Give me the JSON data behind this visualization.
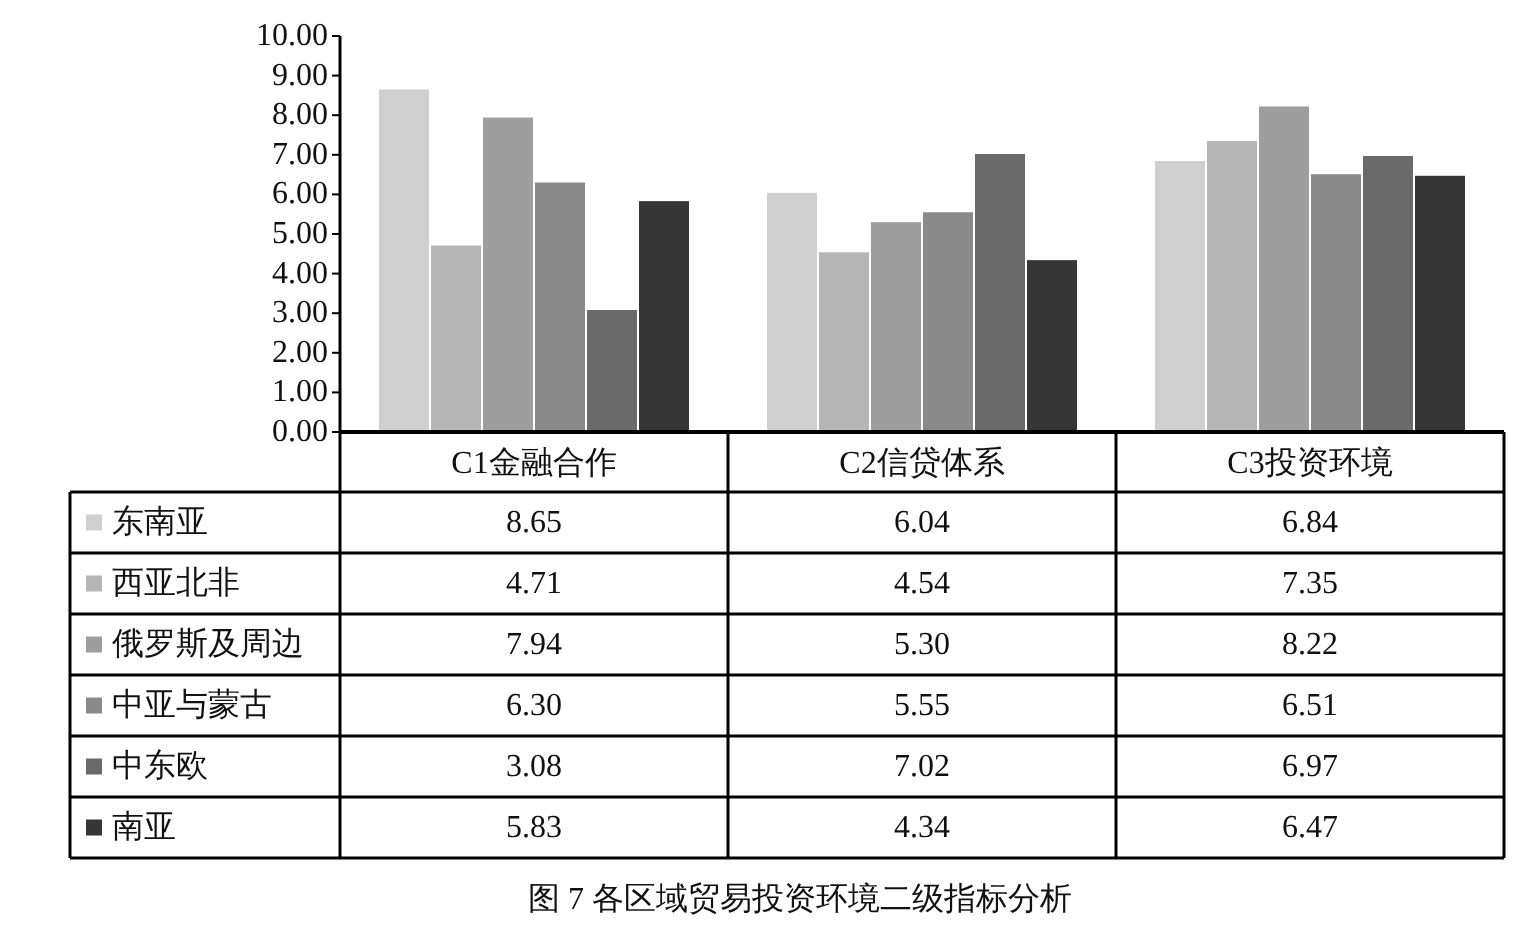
{
  "chart_data": {
    "type": "bar",
    "title": "图 7  各区域贸易投资环境二级指标分析",
    "categories": [
      "C1金融合作",
      "C2信贷体系",
      "C3投资环境"
    ],
    "series": [
      {
        "name": "东南亚",
        "color": "#cfcfcf",
        "values": [
          8.65,
          6.04,
          6.84
        ],
        "value_labels": [
          "8.65",
          "6.04",
          "6.84"
        ]
      },
      {
        "name": "西亚北非",
        "color": "#b6b6b6",
        "values": [
          4.71,
          4.54,
          7.35
        ],
        "value_labels": [
          "4.71",
          "4.54",
          "7.35"
        ]
      },
      {
        "name": "俄罗斯及周边",
        "color": "#9e9e9e",
        "values": [
          7.94,
          5.3,
          8.22
        ],
        "value_labels": [
          "7.94",
          "5.30",
          "8.22"
        ]
      },
      {
        "name": "中亚与蒙古",
        "color": "#8a8a8a",
        "values": [
          6.3,
          5.55,
          6.51
        ],
        "value_labels": [
          "6.30",
          "5.55",
          "6.51"
        ]
      },
      {
        "name": "中东欧",
        "color": "#6a6a6a",
        "values": [
          3.08,
          7.02,
          6.97
        ],
        "value_labels": [
          "3.08",
          "7.02",
          "6.97"
        ]
      },
      {
        "name": "南亚",
        "color": "#363636",
        "values": [
          5.83,
          4.34,
          6.47
        ],
        "value_labels": [
          "5.83",
          "4.34",
          "6.47"
        ]
      }
    ],
    "ylim": [
      0,
      10
    ],
    "yticks": [
      {
        "value": 0,
        "label": "0.00"
      },
      {
        "value": 1,
        "label": "1.00"
      },
      {
        "value": 2,
        "label": "2.00"
      },
      {
        "value": 3,
        "label": "3.00"
      },
      {
        "value": 4,
        "label": "4.00"
      },
      {
        "value": 5,
        "label": "5.00"
      },
      {
        "value": 6,
        "label": "6.00"
      },
      {
        "value": 7,
        "label": "7.00"
      },
      {
        "value": 8,
        "label": "8.00"
      },
      {
        "value": 9,
        "label": "9.00"
      },
      {
        "value": 10,
        "label": "10.00"
      }
    ],
    "legend": "bottom",
    "grid": false
  }
}
